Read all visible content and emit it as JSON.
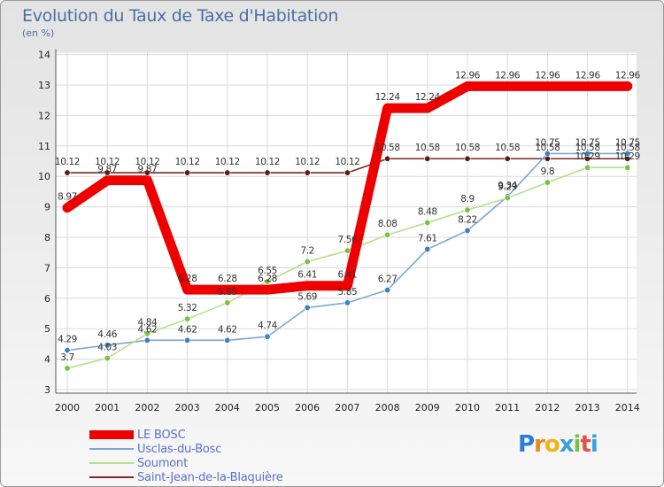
{
  "title": "Evolution du Taux de Taxe d'Habitation",
  "unit_label": "(en %)",
  "logo": {
    "letters": [
      "P",
      "r",
      "o",
      "x",
      "i",
      "t",
      "i"
    ],
    "colors": [
      "#2a7fd4",
      "#e88a1a",
      "#f0b419",
      "#3aa0e0",
      "#7ac143",
      "#e05050",
      "#3aa0e0"
    ]
  },
  "chart_data": {
    "type": "line",
    "x": [
      "2000",
      "2001",
      "2002",
      "2003",
      "2004",
      "2005",
      "2006",
      "2007",
      "2008",
      "2009",
      "2010",
      "2011",
      "2012",
      "2013",
      "2014"
    ],
    "ylim": [
      3,
      14
    ],
    "yticks": [
      "3",
      "4",
      "5",
      "6",
      "7",
      "8",
      "9",
      "10",
      "11",
      "12",
      "13",
      "14"
    ],
    "grid": true,
    "series": [
      {
        "name": "Saint-Jean-de-la-Blaquière",
        "color": "#7a2a2a",
        "marker": "#5c1a1a",
        "values": [
          10.12,
          10.12,
          10.12,
          10.12,
          10.12,
          10.12,
          10.12,
          10.12,
          10.58,
          10.58,
          10.58,
          10.58,
          10.58,
          10.58,
          10.58
        ],
        "labels": [
          "10.12",
          "10.12",
          "10.12",
          "10.12",
          "10.12",
          "10.12",
          "10.12",
          "10.12",
          "10.58",
          "10.58",
          "10.58",
          "10.58",
          "10.58",
          "10.58",
          "10.58"
        ]
      },
      {
        "name": "Usclas-du-Bosc",
        "color": "#7aa7d4",
        "marker": "#3d7fc4",
        "values": [
          4.29,
          4.46,
          4.62,
          4.62,
          4.62,
          4.74,
          5.69,
          5.85,
          6.27,
          7.61,
          8.22,
          9.34,
          10.75,
          10.75,
          10.75
        ],
        "labels": [
          "4.29",
          "4.46",
          "4.62",
          "4.62",
          "4.62",
          "4.74",
          "5.69",
          "5.85",
          "6.27",
          "7.61",
          "8.22",
          "9.34",
          "10.75",
          "10.75",
          "10.75"
        ]
      },
      {
        "name": "Soumont",
        "color": "#b6e08a",
        "marker": "#7ac143",
        "values": [
          3.7,
          4.03,
          4.84,
          5.32,
          5.85,
          6.55,
          7.2,
          7.56,
          8.08,
          8.48,
          8.9,
          9.29,
          9.8,
          10.29,
          10.29
        ],
        "labels": [
          "3.7",
          "4.03",
          "4.84",
          "5.32",
          "5.85",
          "6.55",
          "7.2",
          "7.56",
          "8.08",
          "8.48",
          "8.9",
          "9.29",
          "9.8",
          "10.29",
          "10.29"
        ]
      },
      {
        "name": "LE BOSC",
        "color": "#ee0000",
        "marker": "#ee0000",
        "values": [
          8.97,
          9.87,
          9.87,
          6.28,
          6.28,
          6.28,
          6.41,
          6.41,
          12.24,
          12.24,
          12.96,
          12.96,
          12.96,
          12.96,
          12.96
        ],
        "labels": [
          "8.97",
          "9.87",
          "9.87",
          "6.28",
          "6.28",
          "6.28",
          "6.41",
          "6.41",
          "12.24",
          "12.24",
          "12.96",
          "12.96",
          "12.96",
          "12.96",
          "12.96"
        ]
      }
    ],
    "legend": {
      "position": "bottom-left",
      "order": [
        "LE BOSC",
        "Usclas-du-Bosc",
        "Soumont",
        "Saint-Jean-de-la-Blaquière"
      ]
    }
  }
}
